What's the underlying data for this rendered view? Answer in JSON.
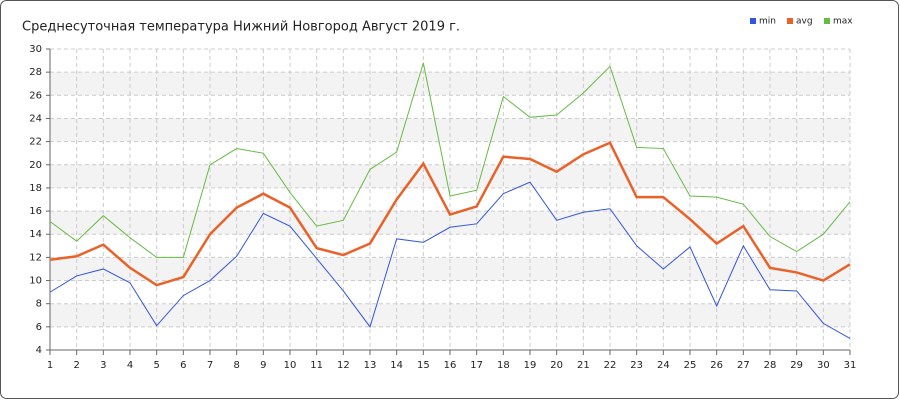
{
  "chart_data": {
    "type": "line",
    "title": "Среднесуточная температура Нижний Новгород  Август 2019 г.",
    "x": [
      1,
      2,
      3,
      4,
      5,
      6,
      7,
      8,
      9,
      10,
      11,
      12,
      13,
      14,
      15,
      16,
      17,
      18,
      19,
      20,
      21,
      22,
      23,
      24,
      25,
      26,
      27,
      28,
      29,
      30,
      31
    ],
    "series": [
      {
        "name": "min",
        "color": "#3355dd",
        "values": [
          9.0,
          10.4,
          11.0,
          9.8,
          6.1,
          8.7,
          10.0,
          12.1,
          15.8,
          14.7,
          11.9,
          9.1,
          6.0,
          13.6,
          13.3,
          14.6,
          14.9,
          17.5,
          18.5,
          15.2,
          15.9,
          16.2,
          13.0,
          11.0,
          12.9,
          7.8,
          13.0,
          9.2,
          9.1,
          6.3,
          5.0
        ]
      },
      {
        "name": "avg",
        "color": "#e8622a",
        "values": [
          11.8,
          12.1,
          13.1,
          11.1,
          9.6,
          10.3,
          14.0,
          16.3,
          17.5,
          16.3,
          12.8,
          12.2,
          13.2,
          17.0,
          20.1,
          15.7,
          16.4,
          20.7,
          20.5,
          19.4,
          20.9,
          21.9,
          17.2,
          17.2,
          15.3,
          13.2,
          14.7,
          11.1,
          10.7,
          10.0,
          11.4
        ]
      },
      {
        "name": "max",
        "color": "#66bb44",
        "values": [
          15.1,
          13.4,
          15.6,
          13.7,
          12.0,
          12.0,
          20.0,
          21.4,
          21.0,
          17.6,
          14.7,
          15.2,
          19.6,
          21.1,
          28.8,
          17.3,
          17.8,
          25.9,
          24.1,
          24.3,
          26.2,
          28.5,
          21.5,
          21.4,
          17.3,
          17.2,
          16.6,
          13.8,
          12.5,
          14.0,
          16.8
        ]
      }
    ],
    "xlim": [
      1,
      31
    ],
    "xticks": [
      1,
      2,
      3,
      4,
      5,
      6,
      7,
      8,
      9,
      10,
      11,
      12,
      13,
      14,
      15,
      16,
      17,
      18,
      19,
      20,
      21,
      22,
      23,
      24,
      25,
      26,
      27,
      28,
      29,
      30,
      31
    ],
    "ylim": [
      4,
      30
    ],
    "yticks": [
      4,
      6,
      8,
      10,
      12,
      14,
      16,
      18,
      20,
      22,
      24,
      26,
      28,
      30
    ],
    "grid": true,
    "legend": "top-right"
  }
}
